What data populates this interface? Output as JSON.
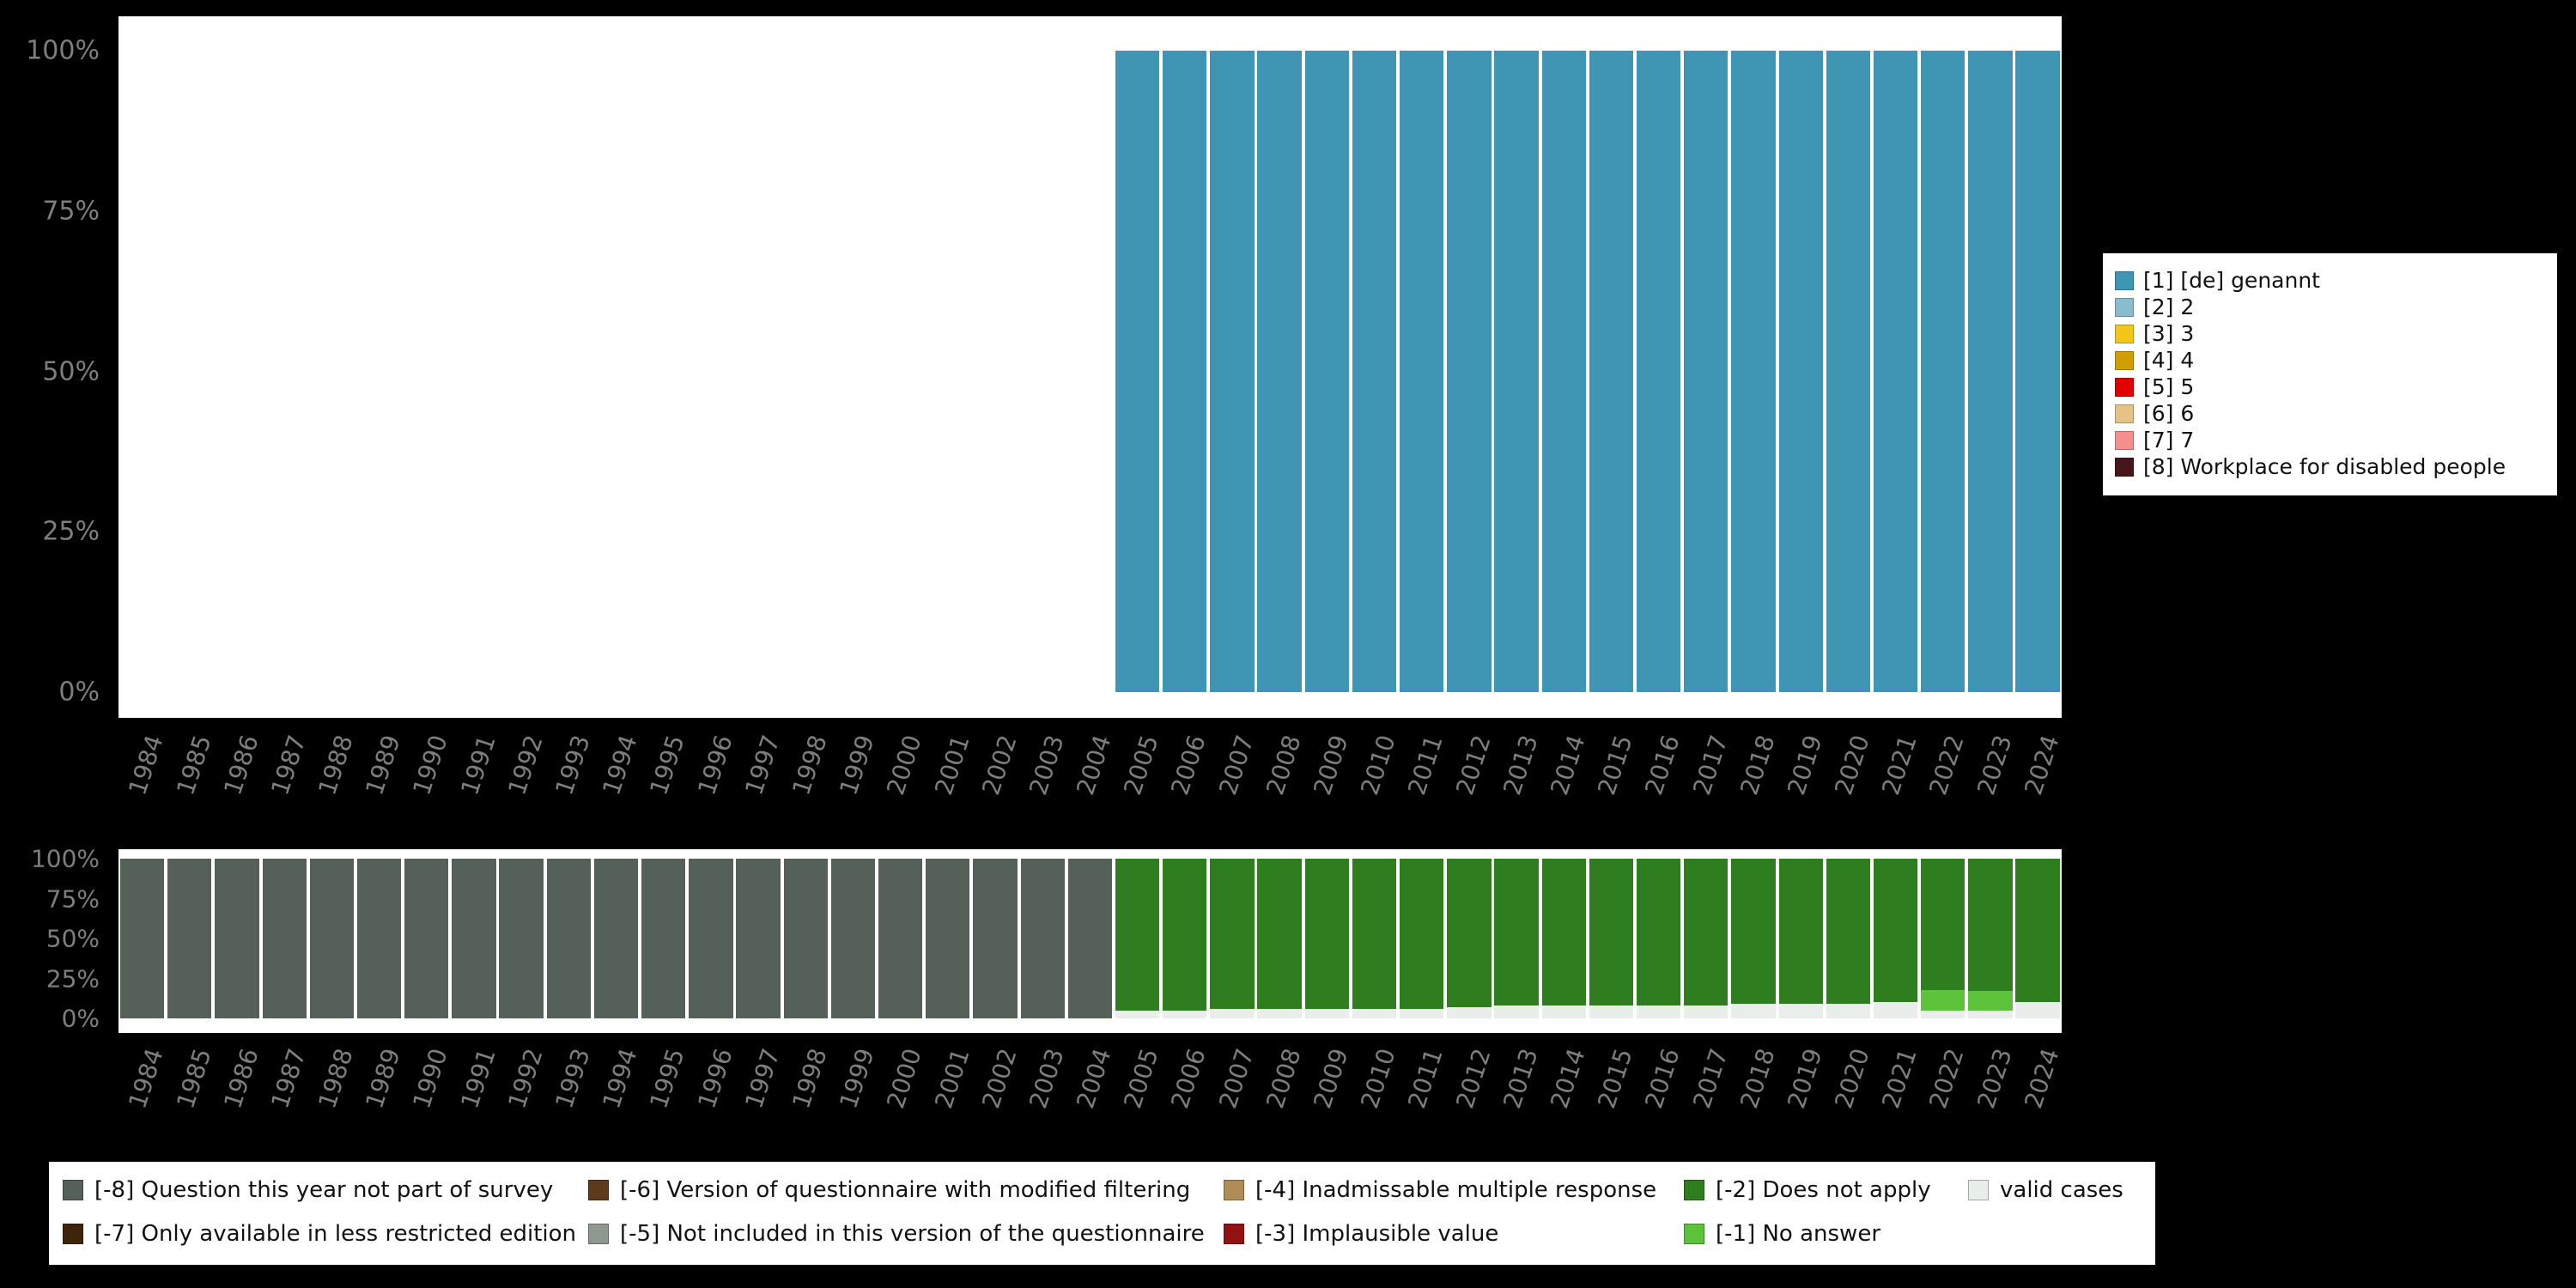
{
  "colors": {
    "background": "#000000",
    "plot_background": "#ffffff",
    "axis_text": "#7e7e7e",
    "legend_text": "#111111"
  },
  "chart_data": [
    {
      "type": "bar",
      "stacked": true,
      "title": "",
      "xlabel": "",
      "ylabel": "",
      "ylim": [
        0,
        100
      ],
      "grid": false,
      "legend_position": "right",
      "y_ticks": [
        "100%",
        "75%",
        "50%",
        "25%",
        "0%"
      ],
      "categories": [
        "1984",
        "1985",
        "1986",
        "1987",
        "1988",
        "1989",
        "1990",
        "1991",
        "1992",
        "1993",
        "1994",
        "1995",
        "1996",
        "1997",
        "1998",
        "1999",
        "2000",
        "2001",
        "2002",
        "2003",
        "2004",
        "2005",
        "2006",
        "2007",
        "2008",
        "2009",
        "2010",
        "2011",
        "2012",
        "2013",
        "2014",
        "2015",
        "2016",
        "2017",
        "2018",
        "2019",
        "2020",
        "2021",
        "2022",
        "2023",
        "2024"
      ],
      "series": [
        {
          "name": "[1] [de] genannt",
          "color": "#3F96B4",
          "values": [
            0,
            0,
            0,
            0,
            0,
            0,
            0,
            0,
            0,
            0,
            0,
            0,
            0,
            0,
            0,
            0,
            0,
            0,
            0,
            0,
            0,
            100,
            100,
            100,
            100,
            100,
            100,
            100,
            100,
            100,
            100,
            100,
            100,
            100,
            100,
            100,
            100,
            100,
            100,
            100,
            100
          ]
        }
      ]
    },
    {
      "type": "bar",
      "stacked": true,
      "title": "",
      "xlabel": "",
      "ylabel": "",
      "ylim": [
        0,
        100
      ],
      "grid": false,
      "legend_position": "bottom",
      "y_ticks": [
        "100%",
        "75%",
        "50%",
        "25%",
        "0%"
      ],
      "categories": [
        "1984",
        "1985",
        "1986",
        "1987",
        "1988",
        "1989",
        "1990",
        "1991",
        "1992",
        "1993",
        "1994",
        "1995",
        "1996",
        "1997",
        "1998",
        "1999",
        "2000",
        "2001",
        "2002",
        "2003",
        "2004",
        "2005",
        "2006",
        "2007",
        "2008",
        "2009",
        "2010",
        "2011",
        "2012",
        "2013",
        "2014",
        "2015",
        "2016",
        "2017",
        "2018",
        "2019",
        "2020",
        "2021",
        "2022",
        "2023",
        "2024"
      ],
      "series": [
        {
          "name": "valid cases",
          "color": "#EAEEEA",
          "values": [
            0,
            0,
            0,
            0,
            0,
            0,
            0,
            0,
            0,
            0,
            0,
            0,
            0,
            0,
            0,
            0,
            0,
            0,
            0,
            0,
            0,
            5,
            5,
            6,
            6,
            6,
            6,
            6,
            7,
            8,
            8,
            8,
            8,
            8,
            9,
            9,
            9,
            10,
            5,
            5,
            10
          ]
        },
        {
          "name": "[-1] No answer",
          "color": "#5BC23A",
          "values": [
            0,
            0,
            0,
            0,
            0,
            0,
            0,
            0,
            0,
            0,
            0,
            0,
            0,
            0,
            0,
            0,
            0,
            0,
            0,
            0,
            0,
            0,
            0,
            0,
            0,
            0,
            0,
            0,
            0,
            0,
            0,
            0,
            0,
            0,
            0,
            0,
            0,
            0,
            13,
            12,
            0
          ]
        },
        {
          "name": "[-2] Does not apply",
          "color": "#2E7D1F",
          "values": [
            0,
            0,
            0,
            0,
            0,
            0,
            0,
            0,
            0,
            0,
            0,
            0,
            0,
            0,
            0,
            0,
            0,
            0,
            0,
            0,
            0,
            95,
            95,
            94,
            94,
            94,
            94,
            94,
            93,
            92,
            92,
            92,
            92,
            92,
            91,
            91,
            91,
            90,
            82,
            83,
            90
          ]
        },
        {
          "name": "[-8] Question this year not part of survey",
          "color": "#556059",
          "values": [
            100,
            100,
            100,
            100,
            100,
            100,
            100,
            100,
            100,
            100,
            100,
            100,
            100,
            100,
            100,
            100,
            100,
            100,
            100,
            100,
            100,
            0,
            0,
            0,
            0,
            0,
            0,
            0,
            0,
            0,
            0,
            0,
            0,
            0,
            0,
            0,
            0,
            0,
            0,
            0,
            0
          ]
        }
      ]
    }
  ],
  "value_legend": {
    "items": [
      {
        "label": "[1] [de] genannt",
        "color": "#3F96B4"
      },
      {
        "label": "[2] 2",
        "color": "#8BBBCE"
      },
      {
        "label": "[3] 3",
        "color": "#F2C718"
      },
      {
        "label": "[4] 4",
        "color": "#D19E00"
      },
      {
        "label": "[5] 5",
        "color": "#E30000"
      },
      {
        "label": "[6] 6",
        "color": "#E7C286"
      },
      {
        "label": "[7] 7",
        "color": "#F58F8F"
      },
      {
        "label": "[8] Workplace for disabled people",
        "color": "#47161B"
      }
    ]
  },
  "missing_legend": {
    "columns": [
      [
        {
          "label": "[-8] Question this year not part of survey",
          "color": "#556059"
        },
        {
          "label": "[-7] Only available in less restricted edition",
          "color": "#3F2409"
        }
      ],
      [
        {
          "label": "[-6] Version of questionnaire with modified filtering",
          "color": "#5E3A1C"
        },
        {
          "label": "[-5] Not included in this version of the questionnaire",
          "color": "#8F988F"
        }
      ],
      [
        {
          "label": "[-4] Inadmissable multiple response",
          "color": "#AF8C55"
        },
        {
          "label": "[-3] Implausible value",
          "color": "#921212"
        }
      ],
      [
        {
          "label": "[-2] Does not apply",
          "color": "#2E7D1F"
        },
        {
          "label": "[-1] No answer",
          "color": "#5BC23A"
        }
      ],
      [
        {
          "label": "valid cases",
          "color": "#EAEEEA"
        }
      ]
    ]
  }
}
